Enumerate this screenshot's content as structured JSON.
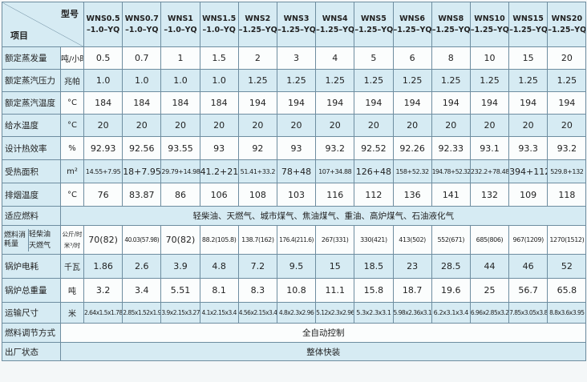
{
  "header": {
    "model_label": "型号",
    "item_label": "项目",
    "models": [
      {
        "name": "WNS0.5",
        "spec": "–1.0–YQ"
      },
      {
        "name": "WNS0.7",
        "spec": "–1.0–YQ"
      },
      {
        "name": "WNS1",
        "spec": "–1.0–YQ"
      },
      {
        "name": "WNS1.5",
        "spec": "–1.0–YQ"
      },
      {
        "name": "WNS2",
        "spec": "–1.25–YQ"
      },
      {
        "name": "WNS3",
        "spec": "–1.25–YQ"
      },
      {
        "name": "WNS4",
        "spec": "–1.25–YQ"
      },
      {
        "name": "WNS5",
        "spec": "–1.25–YQ"
      },
      {
        "name": "WNS6",
        "spec": "–1.25–YQ"
      },
      {
        "name": "WNS8",
        "spec": "–1.25–YQ"
      },
      {
        "name": "WNS10",
        "spec": "–1.25–YQ"
      },
      {
        "name": "WNS15",
        "spec": "–1.25–YQ"
      },
      {
        "name": "WNS20",
        "spec": "–1.25–YQ"
      }
    ]
  },
  "rows": [
    {
      "item": "额定蒸发量",
      "unit": "吨/小时",
      "values": [
        "0.5",
        "0.7",
        "1",
        "1.5",
        "2",
        "3",
        "4",
        "5",
        "6",
        "8",
        "10",
        "15",
        "20"
      ]
    },
    {
      "item": "额定蒸汽压力",
      "unit": "兆帕",
      "values": [
        "1.0",
        "1.0",
        "1.0",
        "1.0",
        "1.25",
        "1.25",
        "1.25",
        "1.25",
        "1.25",
        "1.25",
        "1.25",
        "1.25",
        "1.25"
      ]
    },
    {
      "item": "额定蒸汽温度",
      "unit": "°C",
      "values": [
        "184",
        "184",
        "184",
        "184",
        "194",
        "194",
        "194",
        "194",
        "194",
        "194",
        "194",
        "194",
        "194"
      ]
    },
    {
      "item": "给水温度",
      "unit": "°C",
      "values": [
        "20",
        "20",
        "20",
        "20",
        "20",
        "20",
        "20",
        "20",
        "20",
        "20",
        "20",
        "20",
        "20"
      ]
    },
    {
      "item": "设计热效率",
      "unit": "%",
      "values": [
        "92.93",
        "92.56",
        "93.55",
        "93",
        "92",
        "93",
        "93.2",
        "92.52",
        "92.26",
        "92.33",
        "93.1",
        "93.3",
        "93.2"
      ]
    },
    {
      "item": "受热面积",
      "unit": "m²",
      "values": [
        "14.55+7.95",
        "18+7.95",
        "29.79+14.98",
        "41.2+21",
        "51.41+33.2",
        "78+48",
        "107+34.88",
        "126+48",
        "158+52.32",
        "194.78+52.32",
        "232.2+78.48",
        "394+112",
        "529.8+132"
      ]
    },
    {
      "item": "排烟温度",
      "unit": "°C",
      "values": [
        "76",
        "83.87",
        "86",
        "106",
        "108",
        "103",
        "116",
        "112",
        "136",
        "141",
        "132",
        "109",
        "118"
      ]
    },
    {
      "item": "适应燃料",
      "span_value": "轻柴油、天燃气、城市煤气、焦油煤气、重油、高炉煤气、石油液化气"
    },
    {
      "item": "燃料消耗量",
      "sub_items": [
        "轻柴油",
        "天燃气"
      ],
      "units": [
        "公斤/时",
        "米³/时"
      ],
      "values": [
        "70(82)",
        "40.03(57.98)",
        "70(82)",
        "88.2(105.8)",
        "138.7(162)",
        "176.4(211.6)",
        "267(331)",
        "330(421)",
        "413(502)",
        "552(671)",
        "685(806)",
        "967(1209)",
        "1270(1512)"
      ]
    },
    {
      "item": "锅炉电耗",
      "unit": "千瓦",
      "values": [
        "1.86",
        "2.6",
        "3.9",
        "4.8",
        "7.2",
        "9.5",
        "15",
        "18.5",
        "23",
        "28.5",
        "44",
        "46",
        "52"
      ]
    },
    {
      "item": "锅炉总重量",
      "unit": "吨",
      "values": [
        "3.2",
        "3.4",
        "5.51",
        "8.1",
        "8.3",
        "10.8",
        "11.1",
        "15.8",
        "18.7",
        "19.6",
        "25",
        "56.7",
        "65.8"
      ]
    },
    {
      "item": "运输尺寸",
      "unit": "米",
      "values": [
        "2.64x1.5x1.78",
        "2.85x1.52x1.92",
        "3.9x2.15x3.27",
        "4.1x2.15x3.4",
        "4.56x2.15x3.4",
        "4.8x2.3x2.96",
        "5.12x2.3x2.96",
        "5.3x2.3x3.1",
        "5.98x2.36x3.17",
        "6.2x3.1x3.4",
        "6.96x2.85x3.27",
        "7.85x3.05x3.8",
        "8.8x3.6x3.95"
      ]
    },
    {
      "item": "燃料调节方式",
      "span_value": "全自动控制"
    },
    {
      "item": "出厂状态",
      "span_value": "整体快装"
    }
  ]
}
